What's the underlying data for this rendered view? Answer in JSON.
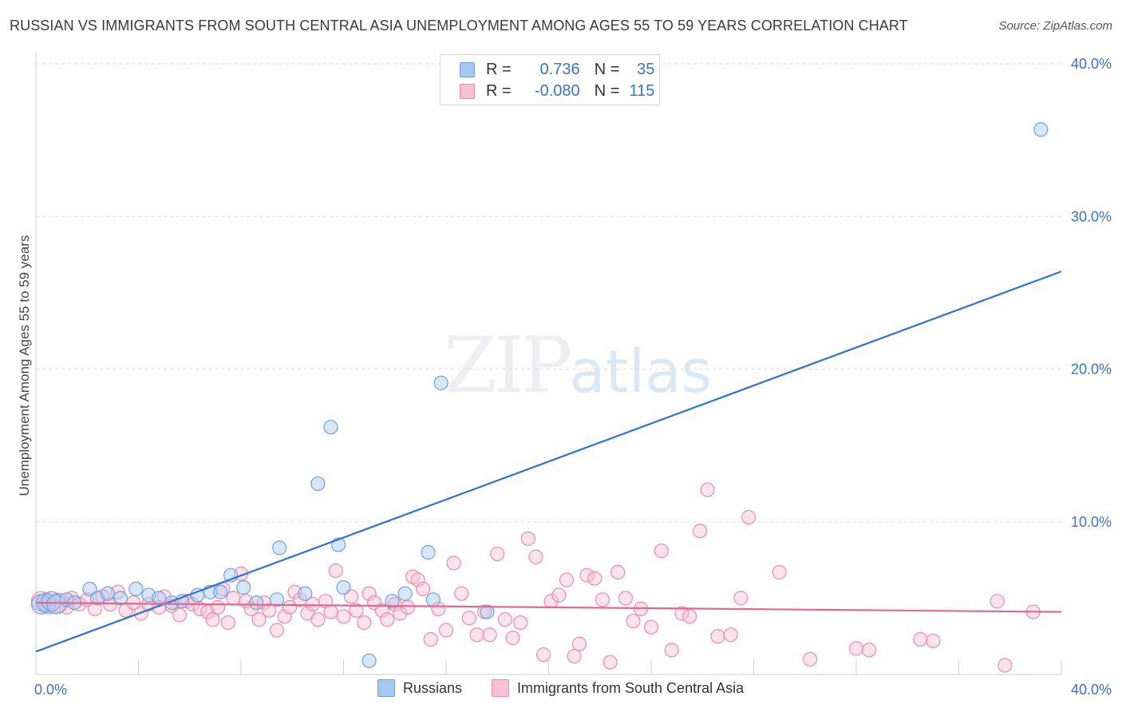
{
  "title": "RUSSIAN VS IMMIGRANTS FROM SOUTH CENTRAL ASIA UNEMPLOYMENT AMONG AGES 55 TO 59 YEARS CORRELATION CHART",
  "source": "Source: ZipAtlas.com",
  "watermark": {
    "zip": "ZIP",
    "atlas": "atlas"
  },
  "legend": {
    "russians": {
      "r_label": "R =",
      "r_value": "0.736",
      "n_label": "N =",
      "n_value": "35"
    },
    "immigrants": {
      "r_label": "R =",
      "r_value": "-0.080",
      "n_label": "N =",
      "n_value": "115"
    }
  },
  "colors": {
    "blue": "#6f9fe0",
    "blue_fill": "#a9c7f1",
    "blue_line": "#2f72d3",
    "pink": "#ee8aac",
    "pink_fill": "#f7c1d3",
    "pink_line": "#e5678f",
    "axis_text": "#3a72c6"
  },
  "chart_data": {
    "type": "scatter",
    "xlabel": "",
    "ylabel": "Unemployment Among Ages 55 to 59 years",
    "xlim": [
      0,
      40
    ],
    "ylim": [
      0,
      40
    ],
    "x_tick_labels": [
      "0.0%",
      "40.0%"
    ],
    "y_tick_labels": [
      "10.0%",
      "20.0%",
      "30.0%",
      "40.0%"
    ],
    "y_ticks": [
      10,
      20,
      30,
      40
    ],
    "series": [
      {
        "name": "Russians",
        "color": "#6f9fe0",
        "trend": [
          [
            0,
            1.5
          ],
          [
            40,
            26.4
          ]
        ],
        "points": [
          [
            0.2,
            4.6
          ],
          [
            0.4,
            4.7
          ],
          [
            0.6,
            4.8
          ],
          [
            0.8,
            4.6
          ],
          [
            1.2,
            4.9
          ],
          [
            1.5,
            4.7
          ],
          [
            2.1,
            5.6
          ],
          [
            2.4,
            5.0
          ],
          [
            2.8,
            5.3
          ],
          [
            3.3,
            5.0
          ],
          [
            3.9,
            5.6
          ],
          [
            4.4,
            5.2
          ],
          [
            4.8,
            5.0
          ],
          [
            5.3,
            4.7
          ],
          [
            5.7,
            4.8
          ],
          [
            6.3,
            5.2
          ],
          [
            6.8,
            5.4
          ],
          [
            7.2,
            5.4
          ],
          [
            7.6,
            6.5
          ],
          [
            8.1,
            5.7
          ],
          [
            8.6,
            4.7
          ],
          [
            9.4,
            4.9
          ],
          [
            9.5,
            8.3
          ],
          [
            10.5,
            5.3
          ],
          [
            11.0,
            12.5
          ],
          [
            11.5,
            16.2
          ],
          [
            11.8,
            8.5
          ],
          [
            12.0,
            5.7
          ],
          [
            13.0,
            0.9
          ],
          [
            13.9,
            4.8
          ],
          [
            14.4,
            5.3
          ],
          [
            15.3,
            8.0
          ],
          [
            15.5,
            4.9
          ],
          [
            15.8,
            19.1
          ],
          [
            17.6,
            4.1
          ],
          [
            39.2,
            35.7
          ]
        ]
      },
      {
        "name": "Immigrants from South Central Asia",
        "color": "#ee8aac",
        "trend": [
          [
            0,
            4.7
          ],
          [
            40,
            4.1
          ]
        ],
        "points": [
          [
            0.2,
            4.8
          ],
          [
            0.5,
            4.6
          ],
          [
            0.9,
            4.7
          ],
          [
            1.2,
            4.4
          ],
          [
            1.4,
            5.0
          ],
          [
            1.7,
            4.6
          ],
          [
            2.0,
            4.9
          ],
          [
            2.3,
            4.3
          ],
          [
            2.6,
            5.1
          ],
          [
            2.9,
            4.6
          ],
          [
            3.2,
            5.4
          ],
          [
            3.5,
            4.2
          ],
          [
            3.8,
            4.7
          ],
          [
            4.1,
            4.0
          ],
          [
            4.4,
            4.6
          ],
          [
            4.8,
            4.4
          ],
          [
            5.0,
            5.1
          ],
          [
            5.3,
            4.5
          ],
          [
            5.6,
            3.9
          ],
          [
            5.9,
            4.8
          ],
          [
            6.1,
            4.6
          ],
          [
            6.4,
            4.3
          ],
          [
            6.7,
            4.1
          ],
          [
            6.9,
            3.6
          ],
          [
            7.1,
            4.4
          ],
          [
            7.3,
            5.6
          ],
          [
            7.5,
            3.4
          ],
          [
            7.7,
            5.0
          ],
          [
            8.0,
            6.6
          ],
          [
            8.2,
            4.8
          ],
          [
            8.4,
            4.3
          ],
          [
            8.7,
            3.6
          ],
          [
            8.9,
            4.7
          ],
          [
            9.1,
            4.2
          ],
          [
            9.4,
            2.9
          ],
          [
            9.7,
            3.8
          ],
          [
            9.9,
            4.4
          ],
          [
            10.1,
            5.4
          ],
          [
            10.3,
            4.9
          ],
          [
            10.6,
            4.0
          ],
          [
            10.8,
            4.6
          ],
          [
            11.0,
            3.6
          ],
          [
            11.3,
            4.8
          ],
          [
            11.5,
            4.1
          ],
          [
            11.7,
            6.8
          ],
          [
            12.0,
            3.8
          ],
          [
            12.3,
            5.1
          ],
          [
            12.5,
            4.2
          ],
          [
            12.8,
            3.4
          ],
          [
            13.0,
            5.3
          ],
          [
            13.2,
            4.7
          ],
          [
            13.5,
            4.2
          ],
          [
            13.7,
            3.6
          ],
          [
            14.0,
            4.6
          ],
          [
            14.2,
            4.0
          ],
          [
            14.5,
            4.4
          ],
          [
            14.7,
            6.4
          ],
          [
            14.9,
            6.2
          ],
          [
            15.1,
            5.6
          ],
          [
            15.4,
            2.3
          ],
          [
            15.7,
            4.3
          ],
          [
            16.0,
            2.9
          ],
          [
            16.3,
            7.3
          ],
          [
            16.6,
            5.3
          ],
          [
            16.9,
            3.7
          ],
          [
            17.2,
            2.6
          ],
          [
            17.5,
            4.1
          ],
          [
            17.7,
            2.6
          ],
          [
            18.0,
            7.9
          ],
          [
            18.3,
            3.6
          ],
          [
            18.6,
            2.4
          ],
          [
            18.9,
            3.4
          ],
          [
            19.2,
            8.9
          ],
          [
            19.5,
            7.7
          ],
          [
            19.8,
            1.3
          ],
          [
            20.1,
            4.8
          ],
          [
            20.4,
            5.2
          ],
          [
            20.7,
            6.2
          ],
          [
            21.0,
            1.2
          ],
          [
            21.2,
            2.0
          ],
          [
            21.5,
            6.5
          ],
          [
            21.8,
            6.3
          ],
          [
            22.1,
            4.9
          ],
          [
            22.4,
            0.8
          ],
          [
            22.7,
            6.7
          ],
          [
            23.0,
            5.0
          ],
          [
            23.3,
            3.5
          ],
          [
            23.6,
            4.3
          ],
          [
            24.0,
            3.1
          ],
          [
            24.4,
            8.1
          ],
          [
            24.8,
            1.6
          ],
          [
            25.2,
            4.0
          ],
          [
            25.5,
            3.8
          ],
          [
            25.9,
            9.4
          ],
          [
            26.2,
            12.1
          ],
          [
            26.6,
            2.5
          ],
          [
            27.1,
            2.6
          ],
          [
            27.5,
            5.0
          ],
          [
            27.8,
            10.3
          ],
          [
            29.0,
            6.7
          ],
          [
            30.2,
            1.0
          ],
          [
            32.0,
            1.7
          ],
          [
            32.5,
            1.6
          ],
          [
            34.5,
            2.3
          ],
          [
            35.0,
            2.2
          ],
          [
            37.5,
            4.8
          ],
          [
            37.8,
            0.6
          ],
          [
            38.9,
            4.1
          ]
        ]
      }
    ]
  }
}
